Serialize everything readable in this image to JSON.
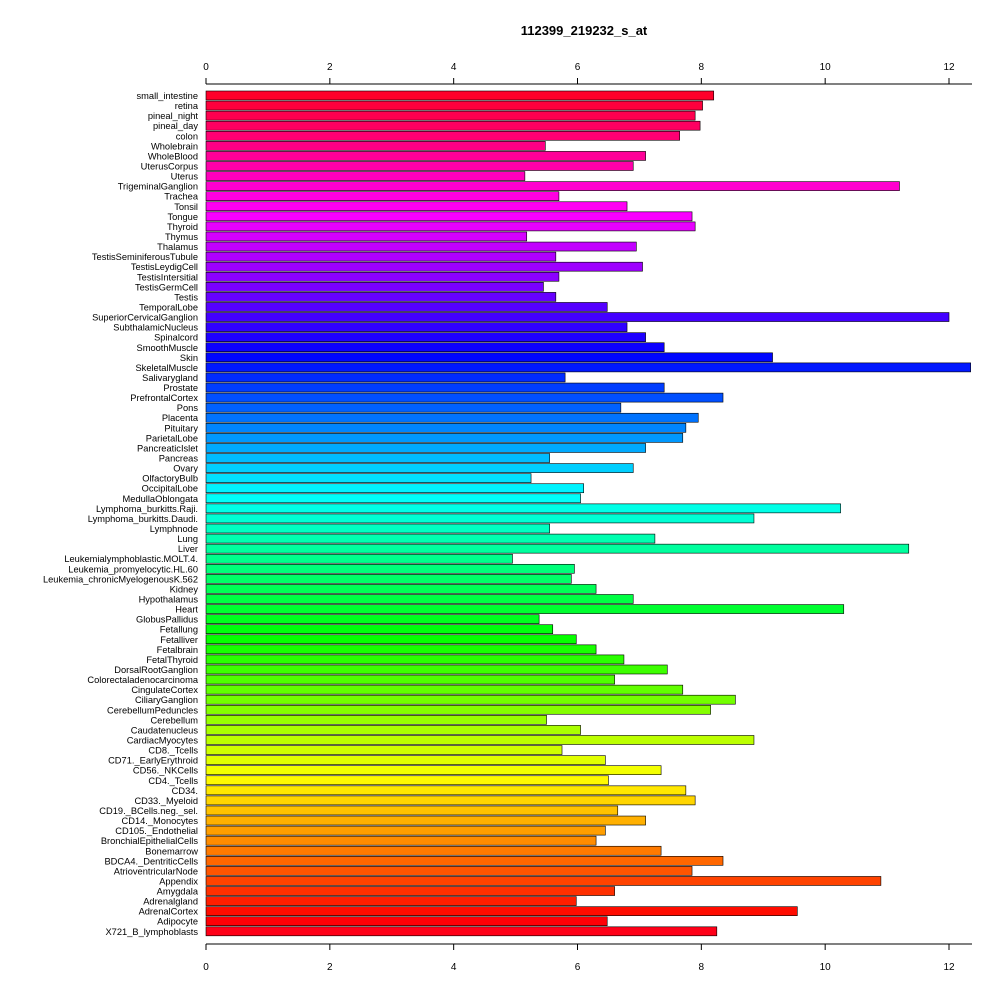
{
  "chart_data": {
    "type": "bar",
    "orientation": "horizontal",
    "title": "112399_219232_s_at",
    "xlabel": "",
    "ylabel": "",
    "xlim": [
      0,
      12
    ],
    "xticks": [
      "0",
      "2",
      "4",
      "6",
      "8",
      "10",
      "12"
    ],
    "grid": false,
    "categories": [
      "small_intestine",
      "retina",
      "pineal_night",
      "pineal_day",
      "colon",
      "Wholebrain",
      "WholeBlood",
      "UterusCorpus",
      "Uterus",
      "TrigeminalGanglion",
      "Trachea",
      "Tonsil",
      "Tongue",
      "Thyroid",
      "Thymus",
      "Thalamus",
      "TestisSeminiferousTubule",
      "TestisLeydigCell",
      "TestisIntersitial",
      "TestisGermCell",
      "Testis",
      "TemporalLobe",
      "SuperiorCervicalGanglion",
      "SubthalamicNucleus",
      "Spinalcord",
      "SmoothMuscle",
      "Skin",
      "SkeletalMuscle",
      "Salivarygland",
      "Prostate",
      "PrefrontalCortex",
      "Pons",
      "Placenta",
      "Pituitary",
      "ParietalLobe",
      "PancreaticIslet",
      "Pancreas",
      "Ovary",
      "OlfactoryBulb",
      "OccipitalLobe",
      "MedullaOblongata",
      "Lymphoma_burkitts.Raji.",
      "Lymphoma_burkitts.Daudi.",
      "Lymphnode",
      "Lung",
      "Liver",
      "Leukemialymphoblastic.MOLT.4.",
      "Leukemia_promyelocytic.HL.60",
      "Leukemia_chronicMyelogenousK.562",
      "Kidney",
      "Hypothalamus",
      "Heart",
      "GlobusPallidus",
      "Fetallung",
      "Fetalliver",
      "Fetalbrain",
      "FetalThyroid",
      "DorsalRootGanglion",
      "Colorectaladenocarcinoma",
      "CingulateCortex",
      "CiliaryGanglion",
      "CerebellumPeduncles",
      "Cerebellum",
      "Caudatenucleus",
      "CardiacMyocytes",
      "CD8._Tcells",
      "CD71._EarlyErythroid",
      "CD56._NKCells",
      "CD4._Tcells",
      "CD34.",
      "CD33._Myeloid",
      "CD19._BCells.neg._sel.",
      "CD14._Monocytes",
      "CD105._Endothelial",
      "BronchialEpithelialCells",
      "Bonemarrow",
      "BDCA4._DentriticCells",
      "AtrioventricularNode",
      "Appendix",
      "Amygdala",
      "Adrenalgland",
      "AdrenalCortex",
      "Adipocyte",
      "X721_B_lymphoblasts"
    ],
    "values": [
      8.2,
      8.02,
      7.9,
      7.98,
      7.65,
      5.48,
      7.1,
      6.9,
      5.15,
      11.2,
      5.7,
      6.8,
      7.85,
      7.9,
      5.18,
      6.95,
      5.65,
      7.05,
      5.7,
      5.45,
      5.65,
      6.48,
      12.0,
      6.8,
      7.1,
      7.4,
      9.15,
      12.35,
      5.8,
      7.4,
      8.35,
      6.7,
      7.95,
      7.75,
      7.7,
      7.1,
      5.55,
      6.9,
      5.25,
      6.1,
      6.05,
      10.25,
      8.85,
      5.55,
      7.25,
      11.35,
      4.95,
      5.95,
      5.9,
      6.3,
      6.9,
      10.3,
      5.38,
      5.6,
      5.98,
      6.3,
      6.75,
      7.45,
      6.6,
      7.7,
      8.55,
      8.15,
      5.5,
      6.05,
      8.85,
      5.75,
      6.45,
      7.35,
      6.5,
      7.75,
      7.9,
      6.65,
      7.1,
      6.45,
      6.3,
      7.35,
      8.35,
      7.85,
      10.9,
      6.6,
      5.98,
      9.55,
      6.48,
      8.25
    ]
  }
}
